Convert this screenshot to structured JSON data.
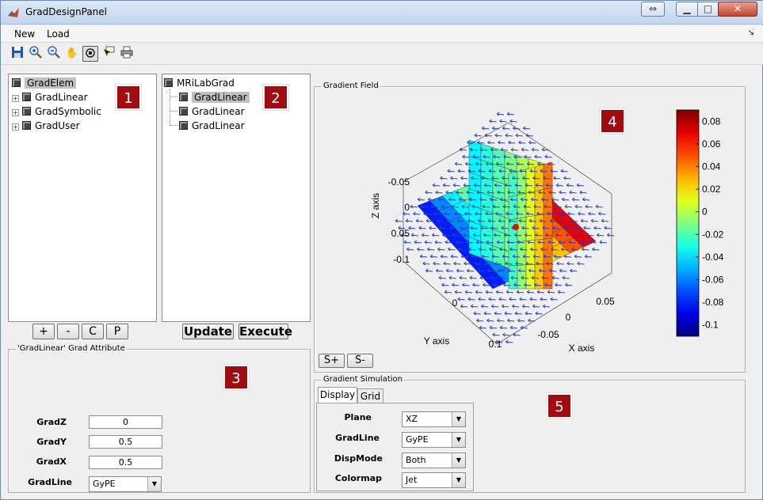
{
  "window": {
    "title": "GradDesignPanel"
  },
  "menu": {
    "items": [
      "New",
      "Load"
    ]
  },
  "toolbar": {
    "icons": [
      "save-icon",
      "zoom-in-icon",
      "zoom-out-icon",
      "pan-icon",
      "rotate-icon",
      "data-cursor-icon",
      "print-icon"
    ]
  },
  "tree1": {
    "root": "GradElem",
    "children": [
      "GradLinear",
      "GradSymbolic",
      "GradUser"
    ]
  },
  "tree2": {
    "root": "MRiLabGrad",
    "children": [
      "GradLinear",
      "GradLinear",
      "GradLinear"
    ]
  },
  "tree_buttons": {
    "add": "+",
    "remove": "-",
    "copy": "C",
    "paste": "P"
  },
  "actions": {
    "update": "Update",
    "execute": "Execute"
  },
  "attr_panel": {
    "title": "'GradLinear' Grad Attribute",
    "fields": [
      {
        "label": "GradZ",
        "value": "0"
      },
      {
        "label": "GradY",
        "value": "0.5"
      },
      {
        "label": "GradX",
        "value": "0.5"
      }
    ],
    "gradline": {
      "label": "GradLine",
      "value": "GyPE"
    }
  },
  "field_panel": {
    "title": "Gradient Field",
    "zoom_plus": "S+",
    "zoom_minus": "S-"
  },
  "chart_data": {
    "type": "heatmap",
    "title": "",
    "xlabel": "X axis",
    "ylabel": "Y axis",
    "zlabel": "Z axis",
    "z_ticks": [
      "-0.05",
      "0",
      "0.05",
      "-0.1"
    ],
    "y_ticks": [
      "0",
      "0.1"
    ],
    "x_ticks": [
      "0.05",
      "0",
      "-0.05"
    ],
    "colorbar_ticks": [
      "0.08",
      "0.06",
      "0.04",
      "0.02",
      "0",
      "-0.02",
      "-0.04",
      "-0.06",
      "-0.08",
      "-0.1"
    ],
    "colorbar_range": [
      -0.11,
      0.09
    ],
    "colormap": "Jet"
  },
  "sim_panel": {
    "title": "Gradient Simulation",
    "tabs": [
      "Display",
      "Grid"
    ],
    "rows": [
      {
        "label": "Plane",
        "value": "XZ"
      },
      {
        "label": "GradLine",
        "value": "GyPE"
      },
      {
        "label": "DispMode",
        "value": "Both"
      },
      {
        "label": "Colormap",
        "value": "Jet"
      }
    ]
  },
  "badges": [
    "1",
    "2",
    "3",
    "4",
    "5"
  ]
}
